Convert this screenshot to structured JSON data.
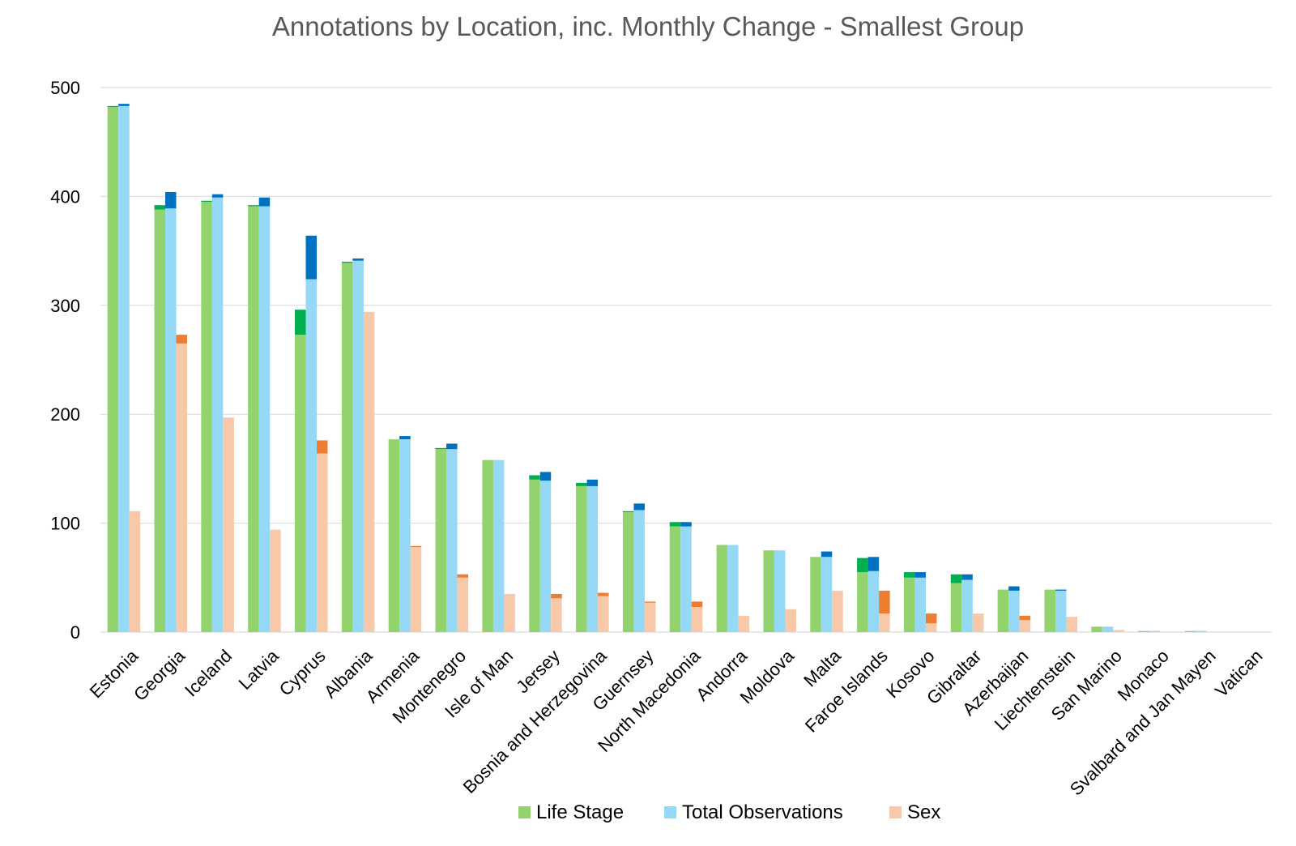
{
  "chart_data": {
    "type": "bar",
    "title": "Annotations by Location, inc. Monthly Change - Smallest Group",
    "xlabel": "",
    "ylabel": "",
    "ylim": [
      0,
      500
    ],
    "yticks": [
      0,
      100,
      200,
      300,
      400,
      500
    ],
    "grid": true,
    "legend_position": "bottom",
    "categories": [
      "Estonia",
      "Georgia",
      "Iceland",
      "Latvia",
      "Cyprus",
      "Albania",
      "Armenia",
      "Montenegro",
      "Isle of Man",
      "Jersey",
      "Bosnia and Herzegovina",
      "Guernsey",
      "North Macedonia",
      "Andorra",
      "Moldova",
      "Malta",
      "Faroe Islands",
      "Kosovo",
      "Gibraltar",
      "Azerbaijan",
      "Liechtenstein",
      "San Marino",
      "Monaco",
      "Svalbard and Jan Mayen",
      "Vatican"
    ],
    "series": [
      {
        "name": "Life Stage",
        "color": "#92d36e",
        "change_color": "#00b050",
        "base": [
          482,
          388,
          395,
          391,
          273,
          339,
          177,
          168,
          158,
          140,
          134,
          110,
          97,
          80,
          75,
          69,
          55,
          50,
          45,
          39,
          39,
          5,
          1,
          1,
          0
        ],
        "change": [
          1,
          4,
          1,
          1,
          23,
          1,
          0,
          1,
          0,
          4,
          3,
          1,
          4,
          0,
          0,
          0,
          13,
          5,
          8,
          0,
          0,
          0,
          0,
          0,
          0
        ]
      },
      {
        "name": "Total Observations",
        "color": "#95d9f7",
        "change_color": "#0070c0",
        "base": [
          483,
          389,
          399,
          391,
          324,
          341,
          177,
          168,
          158,
          139,
          134,
          112,
          97,
          80,
          75,
          69,
          56,
          50,
          48,
          38,
          38,
          5,
          1,
          1,
          0
        ],
        "change": [
          2,
          15,
          3,
          8,
          40,
          2,
          3,
          5,
          0,
          8,
          6,
          6,
          4,
          0,
          0,
          5,
          13,
          5,
          5,
          4,
          1,
          0,
          0,
          0,
          0
        ]
      },
      {
        "name": "Sex",
        "color": "#f8c9a8",
        "change_color": "#ed7d31",
        "base": [
          111,
          265,
          197,
          94,
          164,
          294,
          78,
          50,
          35,
          31,
          33,
          27,
          23,
          15,
          21,
          38,
          17,
          8,
          17,
          11,
          14,
          2,
          0,
          0,
          0
        ],
        "change": [
          0,
          8,
          0,
          0,
          12,
          0,
          1,
          3,
          0,
          4,
          3,
          1,
          5,
          0,
          0,
          0,
          21,
          9,
          0,
          4,
          0,
          0,
          0,
          0,
          0
        ]
      }
    ]
  }
}
